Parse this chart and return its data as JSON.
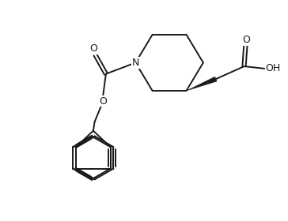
{
  "bg_color": "#ffffff",
  "line_color": "#1a1a1a",
  "lw": 1.4,
  "fig_width": 3.64,
  "fig_height": 2.8,
  "dpi": 100,
  "xlim": [
    0,
    10
  ],
  "ylim": [
    0,
    7.7
  ]
}
